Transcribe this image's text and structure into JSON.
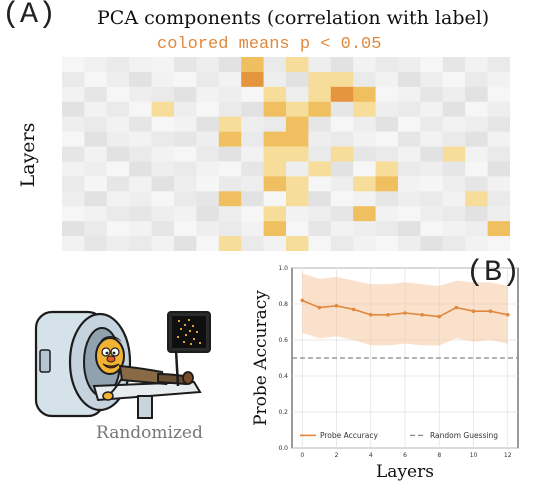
{
  "panel_a": {
    "letter": "(A)",
    "title": "PCA components (correlation with label)",
    "subtitle": "colored means p < 0.05",
    "ylabel": "Layers"
  },
  "panel_b": {
    "letter": "(B)"
  },
  "illustration": {
    "caption": "Randomized"
  },
  "colors": {
    "accent": "#e0893e",
    "heat_strong": "#e6953f",
    "heat_mid": "#f0c060",
    "heat_light": "#f7dd9a",
    "gray_base": "#d9d9d9",
    "random_line": "#888888"
  },
  "chart_data": [
    {
      "type": "heatmap",
      "title": "PCA components (correlation with label)",
      "subtitle": "colored means p < 0.05",
      "ylabel": "Layers",
      "rows": 13,
      "cols": 20,
      "gray_levels": [
        [
          0.05,
          0.12,
          0.2,
          0.1,
          0.08,
          0.25,
          0.15,
          0.3,
          0.1,
          0.2,
          0.05,
          0.15,
          0.3,
          0.1,
          0.2,
          0.15,
          0.05,
          0.25,
          0.1,
          0.2
        ],
        [
          0.2,
          0.05,
          0.15,
          0.3,
          0.1,
          0.05,
          0.2,
          0.1,
          0.25,
          0.15,
          0.3,
          0.05,
          0.1,
          0.2,
          0.1,
          0.3,
          0.15,
          0.05,
          0.2,
          0.1
        ],
        [
          0.1,
          0.25,
          0.05,
          0.15,
          0.2,
          0.3,
          0.1,
          0.15,
          0.05,
          0.25,
          0.15,
          0.2,
          0.1,
          0.3,
          0.05,
          0.1,
          0.25,
          0.15,
          0.3,
          0.05
        ],
        [
          0.3,
          0.1,
          0.2,
          0.05,
          0.25,
          0.15,
          0.05,
          0.2,
          0.3,
          0.1,
          0.2,
          0.1,
          0.25,
          0.05,
          0.15,
          0.2,
          0.1,
          0.3,
          0.05,
          0.15
        ],
        [
          0.15,
          0.2,
          0.1,
          0.25,
          0.05,
          0.1,
          0.3,
          0.05,
          0.15,
          0.2,
          0.1,
          0.25,
          0.05,
          0.15,
          0.3,
          0.05,
          0.2,
          0.1,
          0.15,
          0.25
        ],
        [
          0.05,
          0.3,
          0.15,
          0.1,
          0.2,
          0.25,
          0.15,
          0.1,
          0.2,
          0.05,
          0.3,
          0.15,
          0.2,
          0.1,
          0.05,
          0.25,
          0.1,
          0.2,
          0.3,
          0.1
        ],
        [
          0.25,
          0.1,
          0.3,
          0.2,
          0.1,
          0.05,
          0.2,
          0.3,
          0.1,
          0.15,
          0.05,
          0.2,
          0.1,
          0.25,
          0.2,
          0.1,
          0.3,
          0.05,
          0.1,
          0.2
        ],
        [
          0.1,
          0.15,
          0.05,
          0.3,
          0.15,
          0.2,
          0.1,
          0.05,
          0.25,
          0.3,
          0.15,
          0.1,
          0.3,
          0.05,
          0.1,
          0.2,
          0.15,
          0.25,
          0.05,
          0.3
        ],
        [
          0.2,
          0.05,
          0.25,
          0.1,
          0.3,
          0.15,
          0.05,
          0.2,
          0.15,
          0.1,
          0.25,
          0.05,
          0.15,
          0.2,
          0.3,
          0.1,
          0.05,
          0.15,
          0.25,
          0.1
        ],
        [
          0.15,
          0.3,
          0.1,
          0.15,
          0.05,
          0.2,
          0.25,
          0.1,
          0.3,
          0.05,
          0.2,
          0.3,
          0.05,
          0.1,
          0.25,
          0.15,
          0.2,
          0.1,
          0.05,
          0.2
        ],
        [
          0.05,
          0.1,
          0.2,
          0.25,
          0.15,
          0.1,
          0.3,
          0.15,
          0.05,
          0.2,
          0.1,
          0.15,
          0.25,
          0.3,
          0.1,
          0.05,
          0.15,
          0.2,
          0.3,
          0.15
        ],
        [
          0.3,
          0.2,
          0.05,
          0.1,
          0.25,
          0.05,
          0.15,
          0.2,
          0.1,
          0.3,
          0.05,
          0.25,
          0.1,
          0.15,
          0.2,
          0.3,
          0.05,
          0.1,
          0.15,
          0.25
        ],
        [
          0.1,
          0.25,
          0.15,
          0.2,
          0.1,
          0.3,
          0.05,
          0.25,
          0.2,
          0.1,
          0.15,
          0.05,
          0.2,
          0.1,
          0.05,
          0.15,
          0.3,
          0.2,
          0.1,
          0.05
        ]
      ],
      "colored_cells": [
        {
          "row": 0,
          "col": 8,
          "level": "mid"
        },
        {
          "row": 0,
          "col": 10,
          "level": "light"
        },
        {
          "row": 1,
          "col": 8,
          "level": "strong"
        },
        {
          "row": 1,
          "col": 11,
          "level": "light"
        },
        {
          "row": 1,
          "col": 12,
          "level": "light"
        },
        {
          "row": 2,
          "col": 9,
          "level": "light"
        },
        {
          "row": 2,
          "col": 11,
          "level": "light"
        },
        {
          "row": 2,
          "col": 12,
          "level": "strong"
        },
        {
          "row": 2,
          "col": 13,
          "level": "mid"
        },
        {
          "row": 3,
          "col": 4,
          "level": "light"
        },
        {
          "row": 3,
          "col": 9,
          "level": "mid"
        },
        {
          "row": 3,
          "col": 10,
          "level": "light"
        },
        {
          "row": 3,
          "col": 11,
          "level": "mid"
        },
        {
          "row": 3,
          "col": 13,
          "level": "light"
        },
        {
          "row": 4,
          "col": 7,
          "level": "light"
        },
        {
          "row": 4,
          "col": 10,
          "level": "mid"
        },
        {
          "row": 5,
          "col": 7,
          "level": "mid"
        },
        {
          "row": 5,
          "col": 9,
          "level": "mid"
        },
        {
          "row": 5,
          "col": 10,
          "level": "mid"
        },
        {
          "row": 6,
          "col": 9,
          "level": "light"
        },
        {
          "row": 6,
          "col": 10,
          "level": "light"
        },
        {
          "row": 6,
          "col": 12,
          "level": "light"
        },
        {
          "row": 6,
          "col": 17,
          "level": "light"
        },
        {
          "row": 7,
          "col": 9,
          "level": "light"
        },
        {
          "row": 7,
          "col": 11,
          "level": "light"
        },
        {
          "row": 7,
          "col": 14,
          "level": "light"
        },
        {
          "row": 8,
          "col": 9,
          "level": "mid"
        },
        {
          "row": 8,
          "col": 10,
          "level": "light"
        },
        {
          "row": 8,
          "col": 13,
          "level": "light"
        },
        {
          "row": 8,
          "col": 14,
          "level": "mid"
        },
        {
          "row": 9,
          "col": 7,
          "level": "mid"
        },
        {
          "row": 9,
          "col": 10,
          "level": "light"
        },
        {
          "row": 9,
          "col": 18,
          "level": "light"
        },
        {
          "row": 10,
          "col": 9,
          "level": "light"
        },
        {
          "row": 10,
          "col": 13,
          "level": "mid"
        },
        {
          "row": 11,
          "col": 9,
          "level": "mid"
        },
        {
          "row": 11,
          "col": 19,
          "level": "mid"
        },
        {
          "row": 12,
          "col": 7,
          "level": "light"
        },
        {
          "row": 12,
          "col": 10,
          "level": "light"
        }
      ]
    },
    {
      "type": "line",
      "xlabel": "Layers",
      "ylabel": "Probe Accuracy",
      "xlim": [
        -0.6,
        12.6
      ],
      "ylim": [
        0.0,
        1.0
      ],
      "xticks": [
        "0",
        "2",
        "4",
        "6",
        "8",
        "10",
        "12"
      ],
      "yticks": [
        "0.0",
        "0.2",
        "0.4",
        "0.6",
        "0.8",
        "1.0"
      ],
      "legend_position": "bottom",
      "series": [
        {
          "name": "Probe Accuracy",
          "style": "solid-with-markers",
          "x": [
            0,
            1,
            2,
            3,
            4,
            5,
            6,
            7,
            8,
            9,
            10,
            11,
            12
          ],
          "y": [
            0.82,
            0.78,
            0.79,
            0.77,
            0.74,
            0.74,
            0.75,
            0.74,
            0.73,
            0.78,
            0.76,
            0.76,
            0.74
          ],
          "band_low": [
            0.64,
            0.61,
            0.62,
            0.6,
            0.57,
            0.57,
            0.58,
            0.57,
            0.57,
            0.61,
            0.59,
            0.6,
            0.58
          ],
          "band_high": [
            0.97,
            0.94,
            0.95,
            0.93,
            0.91,
            0.91,
            0.92,
            0.91,
            0.9,
            0.93,
            0.92,
            0.92,
            0.9
          ]
        },
        {
          "name": "Random Guessing",
          "style": "dashed",
          "x": [
            -0.6,
            12.6
          ],
          "y": [
            0.5,
            0.5
          ]
        }
      ]
    }
  ]
}
